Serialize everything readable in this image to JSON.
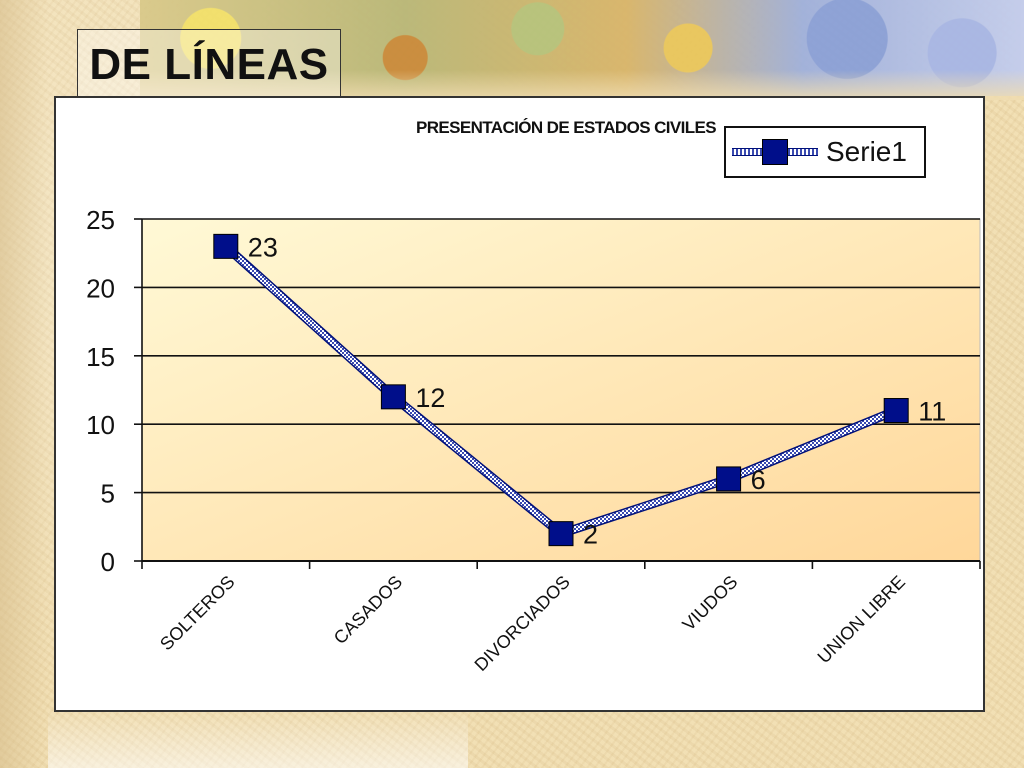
{
  "slide": {
    "title": "DE LÍNEAS"
  },
  "colors": {
    "plot_gradient_top": "#fff9d6",
    "plot_gradient_bottom": "#ffd79a",
    "series_marker": "#000e8a",
    "series_line": "#3a4ab0"
  },
  "chart_data": {
    "type": "line",
    "title": "PRESENTACIÓN DE ESTADOS CIVILES",
    "categories": [
      "SOLTEROS",
      "CASADOS",
      "DIVORCIADOS",
      "VIUDOS",
      "UNION LIBRE"
    ],
    "series": [
      {
        "name": "Serie1",
        "values": [
          23,
          12,
          2,
          6,
          11
        ],
        "marker": "square",
        "data_labels": true
      }
    ],
    "ylim": [
      0,
      25
    ],
    "yticks": [
      0,
      5,
      10,
      15,
      20,
      25
    ],
    "xlabel": "",
    "ylabel": "",
    "grid": "horizontal",
    "legend_position": "top-right",
    "category_label_rotation": -45
  }
}
